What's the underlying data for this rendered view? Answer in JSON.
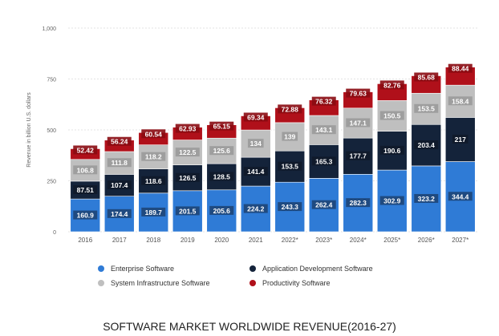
{
  "chart_data": {
    "type": "bar",
    "stacked": true,
    "title": "SOFTWARE MARKET WORLDWIDE REVENUE(2016-27)",
    "ylabel": "Revenue in billion U.S. dollars",
    "xlabel": "",
    "ylim": [
      0,
      1000
    ],
    "yticks": [
      "0",
      "250",
      "500",
      "750",
      "1,000"
    ],
    "grid": true,
    "legend_position": "bottom",
    "categories": [
      "2016",
      "2017",
      "2018",
      "2019",
      "2020",
      "2021",
      "2022*",
      "2023*",
      "2024*",
      "2025*",
      "2026*",
      "2027*"
    ],
    "series": [
      {
        "name": "Enterprise Software",
        "color": "#2f7bd6",
        "values": [
          160.9,
          174.4,
          189.7,
          201.5,
          205.6,
          224.2,
          243.3,
          262.4,
          282.3,
          302.9,
          323.2,
          344.4
        ]
      },
      {
        "name": "Application Development Software",
        "color": "#14233a",
        "values": [
          87.51,
          107.4,
          118.6,
          126.5,
          128.5,
          141.4,
          153.5,
          165.3,
          177.7,
          190.6,
          203.4,
          217
        ]
      },
      {
        "name": "System Infrastructure Software",
        "color": "#bfbfbf",
        "values": [
          106.8,
          111.8,
          118.2,
          122.5,
          125.6,
          134,
          139,
          143.1,
          147.1,
          150.5,
          153.5,
          158.4
        ]
      },
      {
        "name": "Productivity Software",
        "color": "#b0101a",
        "values": [
          52.42,
          56.24,
          60.54,
          62.93,
          65.15,
          69.34,
          72.88,
          76.32,
          79.63,
          82.76,
          85.68,
          88.44
        ]
      }
    ]
  }
}
